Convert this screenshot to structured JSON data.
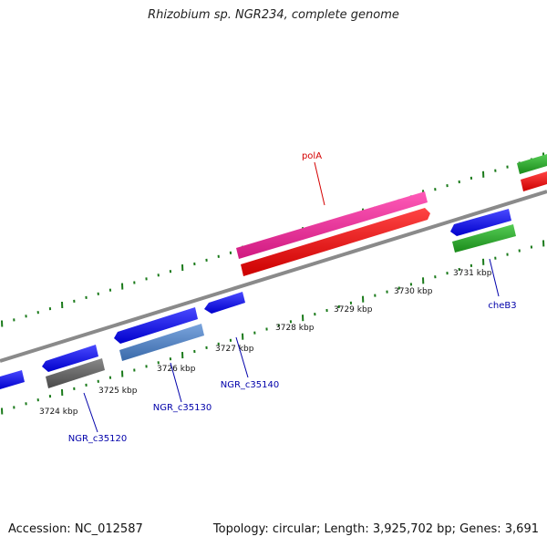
{
  "title": "Rhizobium sp. NGR234, complete genome",
  "accession": "Accession: NC_012587",
  "summary": "Topology: circular; Length: 3,925,702 bp; Genes: 3,691",
  "ticks": [
    "3724 kbp",
    "3725 kbp",
    "3726 kbp",
    "3727 kbp",
    "3728 kbp",
    "3729 kbp",
    "3730 kbp",
    "3731 kbp"
  ],
  "genes": [
    {
      "name": "polA",
      "color": "#d40000"
    },
    {
      "name": "cheB3",
      "color": "#0000aa"
    },
    {
      "name": "NGR_c35120",
      "color": "#0000aa"
    },
    {
      "name": "NGR_c35130",
      "color": "#0000aa"
    },
    {
      "name": "NGR_c35140",
      "color": "#0000aa"
    }
  ],
  "colors": {
    "cds": "#0a0aee",
    "rrna": "#ee0a0a",
    "pink": "#ee2a9a",
    "green": "#2aaa2a",
    "gray": "#666666",
    "steel": "#4a7ac0",
    "backbone": "#8a8a8a",
    "tick": "#1a7a1a"
  }
}
